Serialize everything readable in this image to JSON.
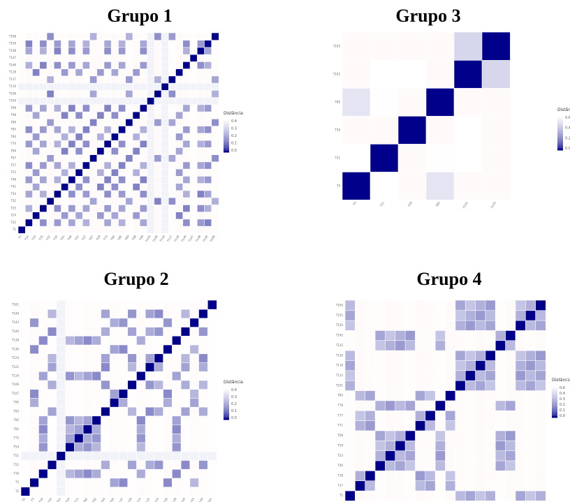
{
  "legend_title": "Distância",
  "colors": {
    "low": "#00008b",
    "mid": "#ffffff",
    "high": "#fdf0ec"
  },
  "chart_data": [
    {
      "type": "heatmap",
      "title": "Grupo 1",
      "legend": {
        "title": "Distância",
        "ticks": [
          "0.4",
          "0.3",
          "0.2",
          "0.1",
          "0.0"
        ],
        "max": 0.4
      },
      "labels": [
        "T1",
        "T31",
        "T24",
        "T25",
        "T32",
        "T34",
        "T41",
        "T48",
        "T52",
        "T57",
        "T67",
        "T69",
        "T70",
        "T84",
        "T85",
        "T89",
        "T98",
        "T99",
        "T104",
        "T106",
        "T116",
        "T117",
        "T118",
        "T146",
        "T147",
        "T148",
        "T156",
        "T168"
      ],
      "label_font": 4,
      "groups": [
        [
          1,
          3,
          5,
          7,
          9,
          12,
          14,
          17,
          23,
          25,
          26
        ],
        [
          2,
          6,
          8,
          11,
          13,
          16,
          22
        ],
        [
          4,
          10,
          15,
          19,
          21,
          27
        ]
      ],
      "blanks": [
        18,
        20
      ],
      "values": {
        "same_group": 0.16,
        "other": 0.62,
        "blank": 0.5
      }
    },
    {
      "type": "heatmap",
      "title": "Grupo 3",
      "legend": {
        "title": "Distância",
        "ticks": [
          "0.6",
          "0.4",
          "0.2",
          "0.0"
        ],
        "max": 0.6
      },
      "labels": [
        "T4",
        "T21",
        "T39",
        "T80",
        "T102",
        "T103"
      ],
      "label_font": 4,
      "cells": {
        "0,3": 0.45,
        "1,4": 0.55,
        "4,5": 0.4,
        "2,4": 0.56,
        "0,1": 0.56,
        "1,3": 0.57
      },
      "values": {
        "other": 0.7
      }
    },
    {
      "type": "heatmap",
      "title": "Grupo 2",
      "legend": {
        "title": "Distância",
        "ticks": [
          "0.4",
          "0.3",
          "0.2",
          "0.1",
          "0.0"
        ],
        "max": 0.4
      },
      "labels": [
        "T2",
        "T3",
        "T16",
        "T22",
        "T51",
        "T54",
        "T72",
        "T82",
        "T92",
        "T93",
        "T95",
        "T107",
        "T109",
        "T114",
        "T122",
        "T124",
        "T136",
        "T138",
        "T140",
        "T143",
        "T149",
        "T161"
      ],
      "label_font": 4,
      "groups": [
        [
          2,
          5,
          6,
          7,
          8,
          13,
          17
        ],
        [
          1,
          10,
          11,
          16,
          19
        ],
        [
          3,
          9,
          12,
          14,
          15,
          18,
          20
        ]
      ],
      "blanks": [
        4
      ],
      "values": {
        "same_group": 0.18,
        "other": 0.6,
        "blank": 0.5
      }
    },
    {
      "type": "heatmap",
      "title": "Grupo 4",
      "legend": {
        "title": "Distância",
        "ticks": [
          "0.6",
          "0.4",
          "0.3",
          "0.2",
          "0.1",
          "0.0"
        ],
        "max": 0.6
      },
      "labels": [
        "T5",
        "T17",
        "T18",
        "T46",
        "T53",
        "T59",
        "T68",
        "T71",
        "T77",
        "T78",
        "T83",
        "T101",
        "T112",
        "T119",
        "T126",
        "T135",
        "T145",
        "T150",
        "T155",
        "T160"
      ],
      "label_font": 4,
      "groups": [
        [
          0,
          11,
          12,
          13,
          14,
          17,
          18,
          19
        ],
        [
          3,
          4,
          5,
          6,
          9,
          15,
          16
        ],
        [
          1,
          2,
          7,
          8,
          10
        ]
      ],
      "blanks": [],
      "values": {
        "same_group": 0.22,
        "other": 0.62,
        "blank": 0.5
      }
    }
  ]
}
